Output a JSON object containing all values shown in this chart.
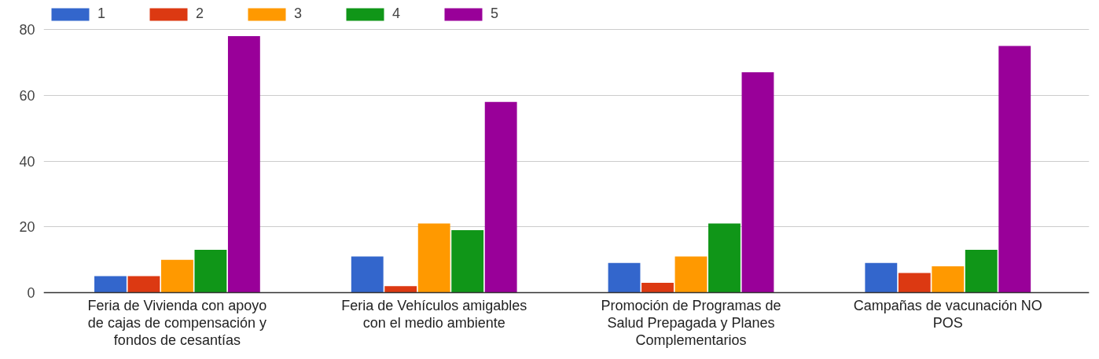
{
  "chart_data": {
    "type": "bar",
    "categories": [
      "Feria de Vivienda con apoyo de cajas de compensación y fondos de cesantías",
      "Feria de Vehículos amigables con el medio ambiente",
      "Promoción de Programas de Salud Prepagada y Planes Complementarios",
      "Campañas de vacunación NO POS"
    ],
    "series": [
      {
        "name": "1",
        "color": "#3366cc",
        "values": [
          5,
          11,
          9,
          9
        ]
      },
      {
        "name": "2",
        "color": "#dc3912",
        "values": [
          5,
          2,
          3,
          6
        ]
      },
      {
        "name": "3",
        "color": "#ff9900",
        "values": [
          10,
          21,
          11,
          8
        ]
      },
      {
        "name": "4",
        "color": "#109618",
        "values": [
          13,
          19,
          21,
          13
        ]
      },
      {
        "name": "5",
        "color": "#990099",
        "values": [
          78,
          58,
          67,
          75
        ]
      }
    ],
    "ylim": [
      0,
      80
    ],
    "yticks": [
      0,
      20,
      40,
      60,
      80
    ],
    "grid": "y",
    "legend": "top left"
  }
}
